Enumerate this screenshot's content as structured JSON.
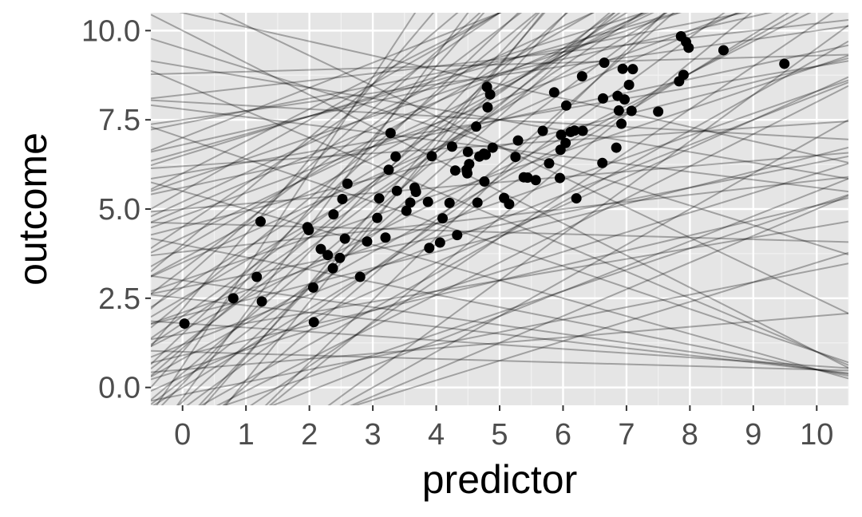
{
  "colors": {
    "panel_background": "#e5e5e5",
    "grid_major": "#ffffff",
    "grid_minor": "#f2f2f2",
    "point": "#000000",
    "line": "#000000",
    "tick_text": "#4d4d4d"
  },
  "chart_data": {
    "type": "scatter",
    "title": "",
    "xlabel": "predictor",
    "ylabel": "outcome",
    "xlim": [
      -0.5,
      10.5
    ],
    "ylim": [
      -0.5,
      10.5
    ],
    "x_ticks": [
      0,
      1,
      2,
      3,
      4,
      5,
      6,
      7,
      8,
      9,
      10
    ],
    "x_tick_labels": [
      "0",
      "1",
      "2",
      "3",
      "4",
      "5",
      "6",
      "7",
      "8",
      "9",
      "10"
    ],
    "y_ticks": [
      0,
      2.5,
      5,
      7.5,
      10
    ],
    "y_tick_labels": [
      "0.0",
      "2.5",
      "5.0",
      "7.5",
      "10.0"
    ],
    "grid": true,
    "legend": "none",
    "points": {
      "x": [
        0.03,
        0.8,
        1.17,
        1.23,
        1.25,
        1.97,
        1.99,
        2.06,
        2.07,
        2.18,
        2.29,
        2.37,
        2.38,
        2.48,
        2.52,
        2.56,
        2.6,
        2.8,
        2.91,
        3.07,
        3.1,
        3.2,
        3.25,
        3.28,
        3.36,
        3.38,
        3.53,
        3.59,
        3.66,
        3.68,
        3.87,
        3.89,
        3.93,
        4.06,
        4.1,
        4.21,
        4.25,
        4.3,
        4.33,
        4.48,
        4.49,
        4.5,
        4.52,
        4.63,
        4.65,
        4.68,
        4.75,
        4.76,
        4.78,
        4.8,
        4.81,
        4.85,
        4.89,
        5.07,
        5.15,
        5.25,
        5.29,
        5.38,
        5.44,
        5.57,
        5.68,
        5.78,
        5.86,
        5.95,
        5.96,
        5.97,
        6.04,
        6.05,
        6.12,
        6.18,
        6.21,
        6.3,
        6.31,
        6.62,
        6.63,
        6.65,
        6.84,
        6.86,
        6.88,
        6.92,
        6.94,
        6.97,
        7.04,
        7.08,
        7.1,
        7.5,
        7.83,
        7.86,
        7.9,
        7.94,
        7.98,
        8.53,
        9.49
      ],
      "y": [
        1.79,
        2.5,
        3.1,
        4.65,
        2.41,
        4.49,
        4.41,
        2.8,
        1.83,
        3.88,
        3.71,
        3.34,
        4.85,
        3.63,
        5.28,
        4.17,
        5.71,
        3.1,
        4.09,
        4.75,
        5.3,
        4.2,
        6.1,
        7.13,
        6.47,
        5.51,
        4.95,
        5.18,
        5.6,
        5.48,
        5.2,
        3.91,
        6.48,
        4.06,
        4.74,
        5.17,
        6.75,
        6.08,
        4.27,
        6.1,
        6.0,
        6.6,
        6.26,
        7.31,
        5.18,
        6.47,
        6.55,
        5.77,
        6.52,
        8.42,
        7.85,
        8.21,
        6.72,
        5.31,
        5.14,
        6.46,
        6.92,
        5.89,
        5.88,
        5.81,
        7.19,
        6.28,
        8.27,
        5.87,
        6.66,
        7.08,
        6.85,
        7.9,
        7.16,
        7.2,
        5.3,
        8.72,
        7.19,
        6.29,
        8.1,
        9.1,
        6.72,
        8.17,
        7.76,
        7.39,
        8.93,
        8.07,
        8.48,
        7.75,
        8.92,
        7.73,
        8.58,
        9.84,
        8.76,
        9.68,
        9.52,
        9.45,
        9.07
      ]
    },
    "sampled_lines": [
      {
        "intercept": -0.4,
        "slope": 1.6
      },
      {
        "intercept": 0.4,
        "slope": 1.5
      },
      {
        "intercept": 1.2,
        "slope": 1.35
      },
      {
        "intercept": 2.0,
        "slope": 1.25
      },
      {
        "intercept": 2.8,
        "slope": 1.1
      },
      {
        "intercept": 3.6,
        "slope": 0.95
      },
      {
        "intercept": 4.2,
        "slope": 0.85
      },
      {
        "intercept": 5.0,
        "slope": 0.75
      },
      {
        "intercept": 5.8,
        "slope": 0.6
      },
      {
        "intercept": 6.6,
        "slope": 0.5
      },
      {
        "intercept": 7.4,
        "slope": 0.35
      },
      {
        "intercept": 8.2,
        "slope": 0.2
      },
      {
        "intercept": 0.0,
        "slope": 1.1
      },
      {
        "intercept": 0.8,
        "slope": 1.0
      },
      {
        "intercept": 1.6,
        "slope": 0.9
      },
      {
        "intercept": -1.0,
        "slope": 0.9
      },
      {
        "intercept": -1.5,
        "slope": 0.7
      },
      {
        "intercept": -2.0,
        "slope": 0.55
      },
      {
        "intercept": -2.5,
        "slope": 0.75
      },
      {
        "intercept": -3.0,
        "slope": 1.0
      },
      {
        "intercept": -1.0,
        "slope": 1.9
      },
      {
        "intercept": -2.0,
        "slope": 2.2
      },
      {
        "intercept": 1.0,
        "slope": 2.0
      },
      {
        "intercept": 3.0,
        "slope": 1.6
      },
      {
        "intercept": 4.5,
        "slope": 1.2
      },
      {
        "intercept": 6.0,
        "slope": 0.9
      },
      {
        "intercept": 7.0,
        "slope": 0.7
      },
      {
        "intercept": 3.0,
        "slope": 0.6
      },
      {
        "intercept": 2.0,
        "slope": 0.45
      },
      {
        "intercept": 1.5,
        "slope": 0.3
      },
      {
        "intercept": 0.5,
        "slope": 0.55
      },
      {
        "intercept": 1.0,
        "slope": -0.05
      },
      {
        "intercept": 2.5,
        "slope": -0.2
      },
      {
        "intercept": 4.0,
        "slope": -0.35
      },
      {
        "intercept": 5.5,
        "slope": -0.5
      },
      {
        "intercept": 7.0,
        "slope": -0.6
      },
      {
        "intercept": 8.5,
        "slope": -0.75
      },
      {
        "intercept": 10.0,
        "slope": -0.9
      },
      {
        "intercept": 11.0,
        "slope": -0.85
      },
      {
        "intercept": 9.0,
        "slope": -0.3
      },
      {
        "intercept": 8.0,
        "slope": -0.1
      },
      {
        "intercept": 10.5,
        "slope": -0.4
      },
      {
        "intercept": 5.0,
        "slope": 0.15
      },
      {
        "intercept": 6.0,
        "slope": 0.3
      },
      {
        "intercept": 4.5,
        "slope": 0.45
      },
      {
        "intercept": 3.5,
        "slope": 0.8
      },
      {
        "intercept": 2.5,
        "slope": 1.05
      },
      {
        "intercept": 1.8,
        "slope": 1.2
      },
      {
        "intercept": 0.2,
        "slope": 1.35
      },
      {
        "intercept": -0.6,
        "slope": 1.3
      },
      {
        "intercept": -1.5,
        "slope": 1.55
      },
      {
        "intercept": -0.3,
        "slope": 2.4
      },
      {
        "intercept": 0.6,
        "slope": 2.7
      },
      {
        "intercept": 2.2,
        "slope": 2.1
      },
      {
        "intercept": 5.5,
        "slope": 1.0
      },
      {
        "intercept": 6.5,
        "slope": 0.55
      },
      {
        "intercept": 7.5,
        "slope": 0.25
      },
      {
        "intercept": 3.8,
        "slope": 0.2
      },
      {
        "intercept": 2.8,
        "slope": 0.35
      },
      {
        "intercept": 1.2,
        "slope": 0.7
      },
      {
        "intercept": 0.3,
        "slope": 0.8
      },
      {
        "intercept": -0.8,
        "slope": 1.0
      },
      {
        "intercept": -1.8,
        "slope": 1.2
      },
      {
        "intercept": -2.5,
        "slope": 1.45
      },
      {
        "intercept": -0.2,
        "slope": 0.35
      },
      {
        "intercept": 0.5,
        "slope": 0.15
      },
      {
        "intercept": 4.8,
        "slope": 0.65
      },
      {
        "intercept": 3.3,
        "slope": 1.35
      },
      {
        "intercept": 1.5,
        "slope": 1.7
      },
      {
        "intercept": 0.9,
        "slope": 0.42
      },
      {
        "intercept": 2.1,
        "slope": 0.62
      },
      {
        "intercept": 3.9,
        "slope": 1.02
      },
      {
        "intercept": 5.2,
        "slope": 0.82
      },
      {
        "intercept": 6.2,
        "slope": 0.12
      },
      {
        "intercept": 7.8,
        "slope": -0.22
      },
      {
        "intercept": 9.5,
        "slope": -0.55
      },
      {
        "intercept": 3.0,
        "slope": -0.25
      },
      {
        "intercept": 1.8,
        "slope": -0.12
      },
      {
        "intercept": 4.6,
        "slope": -0.05
      },
      {
        "intercept": -0.9,
        "slope": 0.6
      },
      {
        "intercept": -3.5,
        "slope": 1.3
      },
      {
        "intercept": -2.8,
        "slope": 1.75
      },
      {
        "intercept": -1.2,
        "slope": 2.05
      },
      {
        "intercept": 0.1,
        "slope": 1.85
      },
      {
        "intercept": 1.1,
        "slope": 1.55
      },
      {
        "intercept": 2.4,
        "slope": 1.45
      },
      {
        "intercept": 4.0,
        "slope": 1.5
      },
      {
        "intercept": 6.8,
        "slope": 0.4
      },
      {
        "intercept": 5.6,
        "slope": 0.38
      },
      {
        "intercept": 8.8,
        "slope": 0.05
      }
    ]
  }
}
